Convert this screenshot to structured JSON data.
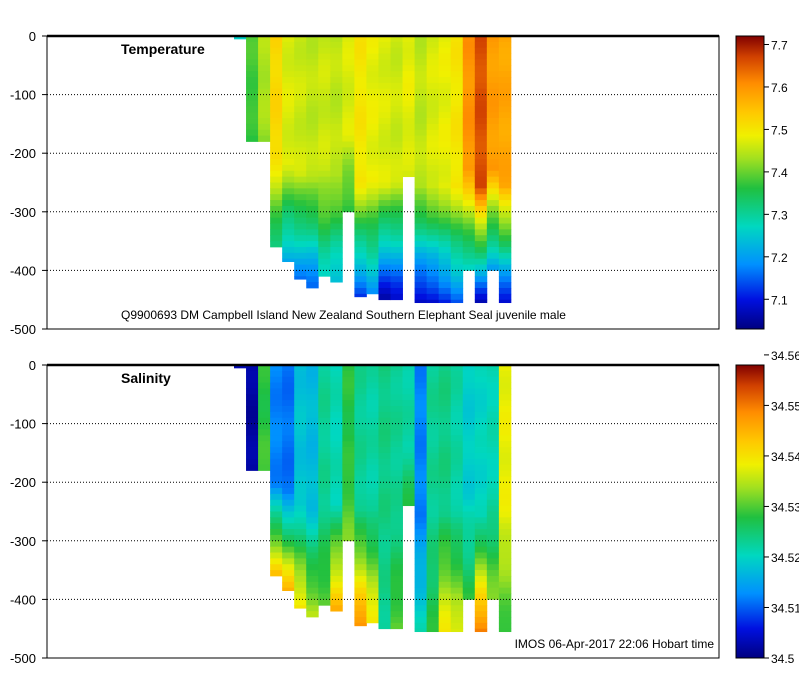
{
  "chart_data": [
    {
      "type": "heatmap",
      "title": "Temperature",
      "caption": "Q9900693 DM Campbell Island New Zealand Southern Elephant Seal juvenile male",
      "ylabel": "",
      "ylim": [
        -500,
        0
      ],
      "yticks": [
        "0",
        "-100",
        "-200",
        "-300",
        "-400",
        "-500"
      ],
      "colorbar": {
        "min": 7.03,
        "max": 7.72,
        "ticks": [
          "7.1",
          "7.2",
          "7.3",
          "7.4",
          "7.5",
          "7.6",
          "7.7"
        ],
        "tick_values": [
          7.1,
          7.2,
          7.3,
          7.4,
          7.5,
          7.6,
          7.7
        ]
      },
      "profiles": [
        {
          "depth": 5,
          "mid": 7.26,
          "deep": 7.26
        },
        {
          "depth": 180,
          "mid": 7.38,
          "deep": 7.36
        },
        {
          "depth": 180,
          "mid": 7.44,
          "deep": 7.42
        },
        {
          "depth": 360,
          "mid": 7.52,
          "deep": 7.3
        },
        {
          "depth": 385,
          "mid": 7.47,
          "deep": 7.2
        },
        {
          "depth": 415,
          "mid": 7.46,
          "deep": 7.16
        },
        {
          "depth": 430,
          "mid": 7.45,
          "deep": 7.14
        },
        {
          "depth": 410,
          "mid": 7.46,
          "deep": 7.26
        },
        {
          "depth": 420,
          "mid": 7.45,
          "deep": 7.22
        },
        {
          "depth": 300,
          "mid": 7.47,
          "deep": 7.35
        },
        {
          "depth": 445,
          "mid": 7.5,
          "deep": 7.12
        },
        {
          "depth": 440,
          "mid": 7.48,
          "deep": 7.18
        },
        {
          "depth": 450,
          "mid": 7.47,
          "deep": 7.05
        },
        {
          "depth": 450,
          "mid": 7.46,
          "deep": 7.07
        },
        {
          "depth": 240,
          "mid": 7.48,
          "deep": 7.46
        },
        {
          "depth": 455,
          "mid": 7.45,
          "deep": 7.06
        },
        {
          "depth": 455,
          "mid": 7.47,
          "deep": 7.07
        },
        {
          "depth": 455,
          "mid": 7.48,
          "deep": 7.1
        },
        {
          "depth": 455,
          "mid": 7.5,
          "deep": 7.14
        },
        {
          "depth": 400,
          "mid": 7.6,
          "deep": 7.24
        },
        {
          "depth": 455,
          "mid": 7.66,
          "deep": 7.06
        },
        {
          "depth": 400,
          "mid": 7.59,
          "deep": 7.18
        },
        {
          "depth": 455,
          "mid": 7.58,
          "deep": 7.07
        }
      ]
    },
    {
      "type": "heatmap",
      "title": "Salinity",
      "caption": "IMOS 06-Apr-2017 22:06 Hobart time",
      "ylabel": "",
      "ylim": [
        -500,
        0
      ],
      "yticks": [
        "0",
        "-100",
        "-200",
        "-300",
        "-400",
        "-500"
      ],
      "colorbar": {
        "min": 34.5,
        "max": 34.558,
        "ticks": [
          "34.5",
          "34.51",
          "34.52",
          "34.53",
          "34.54",
          "34.55",
          "34.56"
        ],
        "tick_values": [
          34.5,
          34.51,
          34.52,
          34.53,
          34.54,
          34.55,
          34.56
        ]
      },
      "profiles": [
        {
          "depth": 5,
          "mid": 34.503,
          "deep": 34.503
        },
        {
          "depth": 180,
          "mid": 34.502,
          "deep": 34.502
        },
        {
          "depth": 180,
          "mid": 34.528,
          "deep": 34.53
        },
        {
          "depth": 360,
          "mid": 34.512,
          "deep": 34.545
        },
        {
          "depth": 385,
          "mid": 34.511,
          "deep": 34.546
        },
        {
          "depth": 415,
          "mid": 34.518,
          "deep": 34.541
        },
        {
          "depth": 430,
          "mid": 34.517,
          "deep": 34.536
        },
        {
          "depth": 410,
          "mid": 34.523,
          "deep": 34.531
        },
        {
          "depth": 420,
          "mid": 34.521,
          "deep": 34.546
        },
        {
          "depth": 300,
          "mid": 34.528,
          "deep": 34.532
        },
        {
          "depth": 445,
          "mid": 34.523,
          "deep": 34.549
        },
        {
          "depth": 440,
          "mid": 34.522,
          "deep": 34.541
        },
        {
          "depth": 450,
          "mid": 34.524,
          "deep": 34.523
        },
        {
          "depth": 450,
          "mid": 34.523,
          "deep": 34.531
        },
        {
          "depth": 240,
          "mid": 34.522,
          "deep": 34.528
        },
        {
          "depth": 455,
          "mid": 34.512,
          "deep": 34.521
        },
        {
          "depth": 455,
          "mid": 34.523,
          "deep": 34.528
        },
        {
          "depth": 455,
          "mid": 34.524,
          "deep": 34.54
        },
        {
          "depth": 455,
          "mid": 34.522,
          "deep": 34.538
        },
        {
          "depth": 400,
          "mid": 34.519,
          "deep": 34.528
        },
        {
          "depth": 455,
          "mid": 34.52,
          "deep": 34.551
        },
        {
          "depth": 400,
          "mid": 34.521,
          "deep": 34.533
        },
        {
          "depth": 455,
          "mid": 34.538,
          "deep": 34.528
        }
      ]
    }
  ]
}
